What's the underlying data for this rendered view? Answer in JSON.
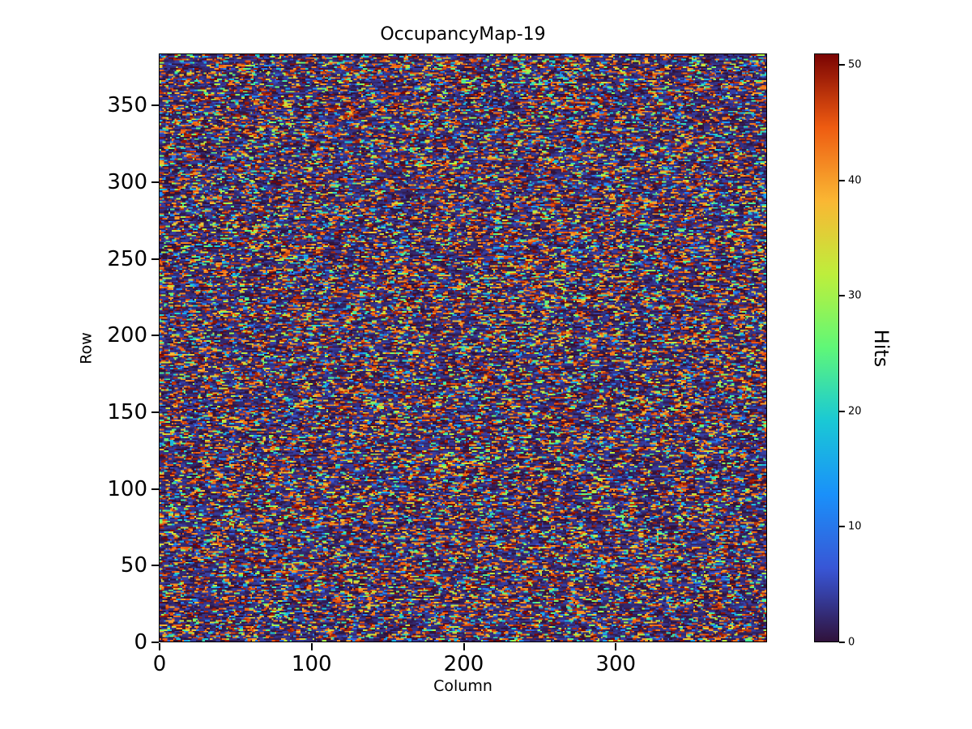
{
  "figure": {
    "background": "#ffffff",
    "text_color": "#000000"
  },
  "chart_data": {
    "type": "heatmap",
    "title": "OccupancyMap-19",
    "xlabel": "Column",
    "ylabel": "Row",
    "colorbar_label": "Hits",
    "grid_cols": 400,
    "grid_rows": 384,
    "x_range": [
      0,
      400
    ],
    "y_range": [
      0,
      384
    ],
    "x_ticks": [
      0,
      100,
      200,
      300
    ],
    "y_ticks": [
      0,
      50,
      100,
      150,
      200,
      250,
      300,
      350
    ],
    "colorbar_ticks": [
      0,
      10,
      20,
      30,
      40,
      50
    ],
    "value_range": [
      0,
      51
    ],
    "colormap": "turbo",
    "colormap_stops": [
      [
        0.0,
        48,
        18,
        59
      ],
      [
        0.12,
        57,
        84,
        213
      ],
      [
        0.25,
        26,
        144,
        250
      ],
      [
        0.38,
        26,
        202,
        212
      ],
      [
        0.5,
        95,
        247,
        120
      ],
      [
        0.62,
        187,
        240,
        60
      ],
      [
        0.75,
        250,
        183,
        51
      ],
      [
        0.88,
        237,
        88,
        16
      ],
      [
        1.0,
        122,
        4,
        3
      ]
    ],
    "legend_position": "right-colorbar",
    "grid": false,
    "data_description": "Dense random per-pixel hit-count map: majority of pixels near 0 (dark blue/purple), frequent high-occupancy streaks 40-51 (red to dark red), sparse mid values 5-39 (blue/cyan/green/yellow), drawn as short horizontal runs.",
    "generator": {
      "seed": 19,
      "low_frac": 0.54,
      "high_frac": 0.26,
      "low_max": 4,
      "high_min": 40,
      "mid_min": 5,
      "mid_max": 39,
      "max_run": 4
    }
  }
}
